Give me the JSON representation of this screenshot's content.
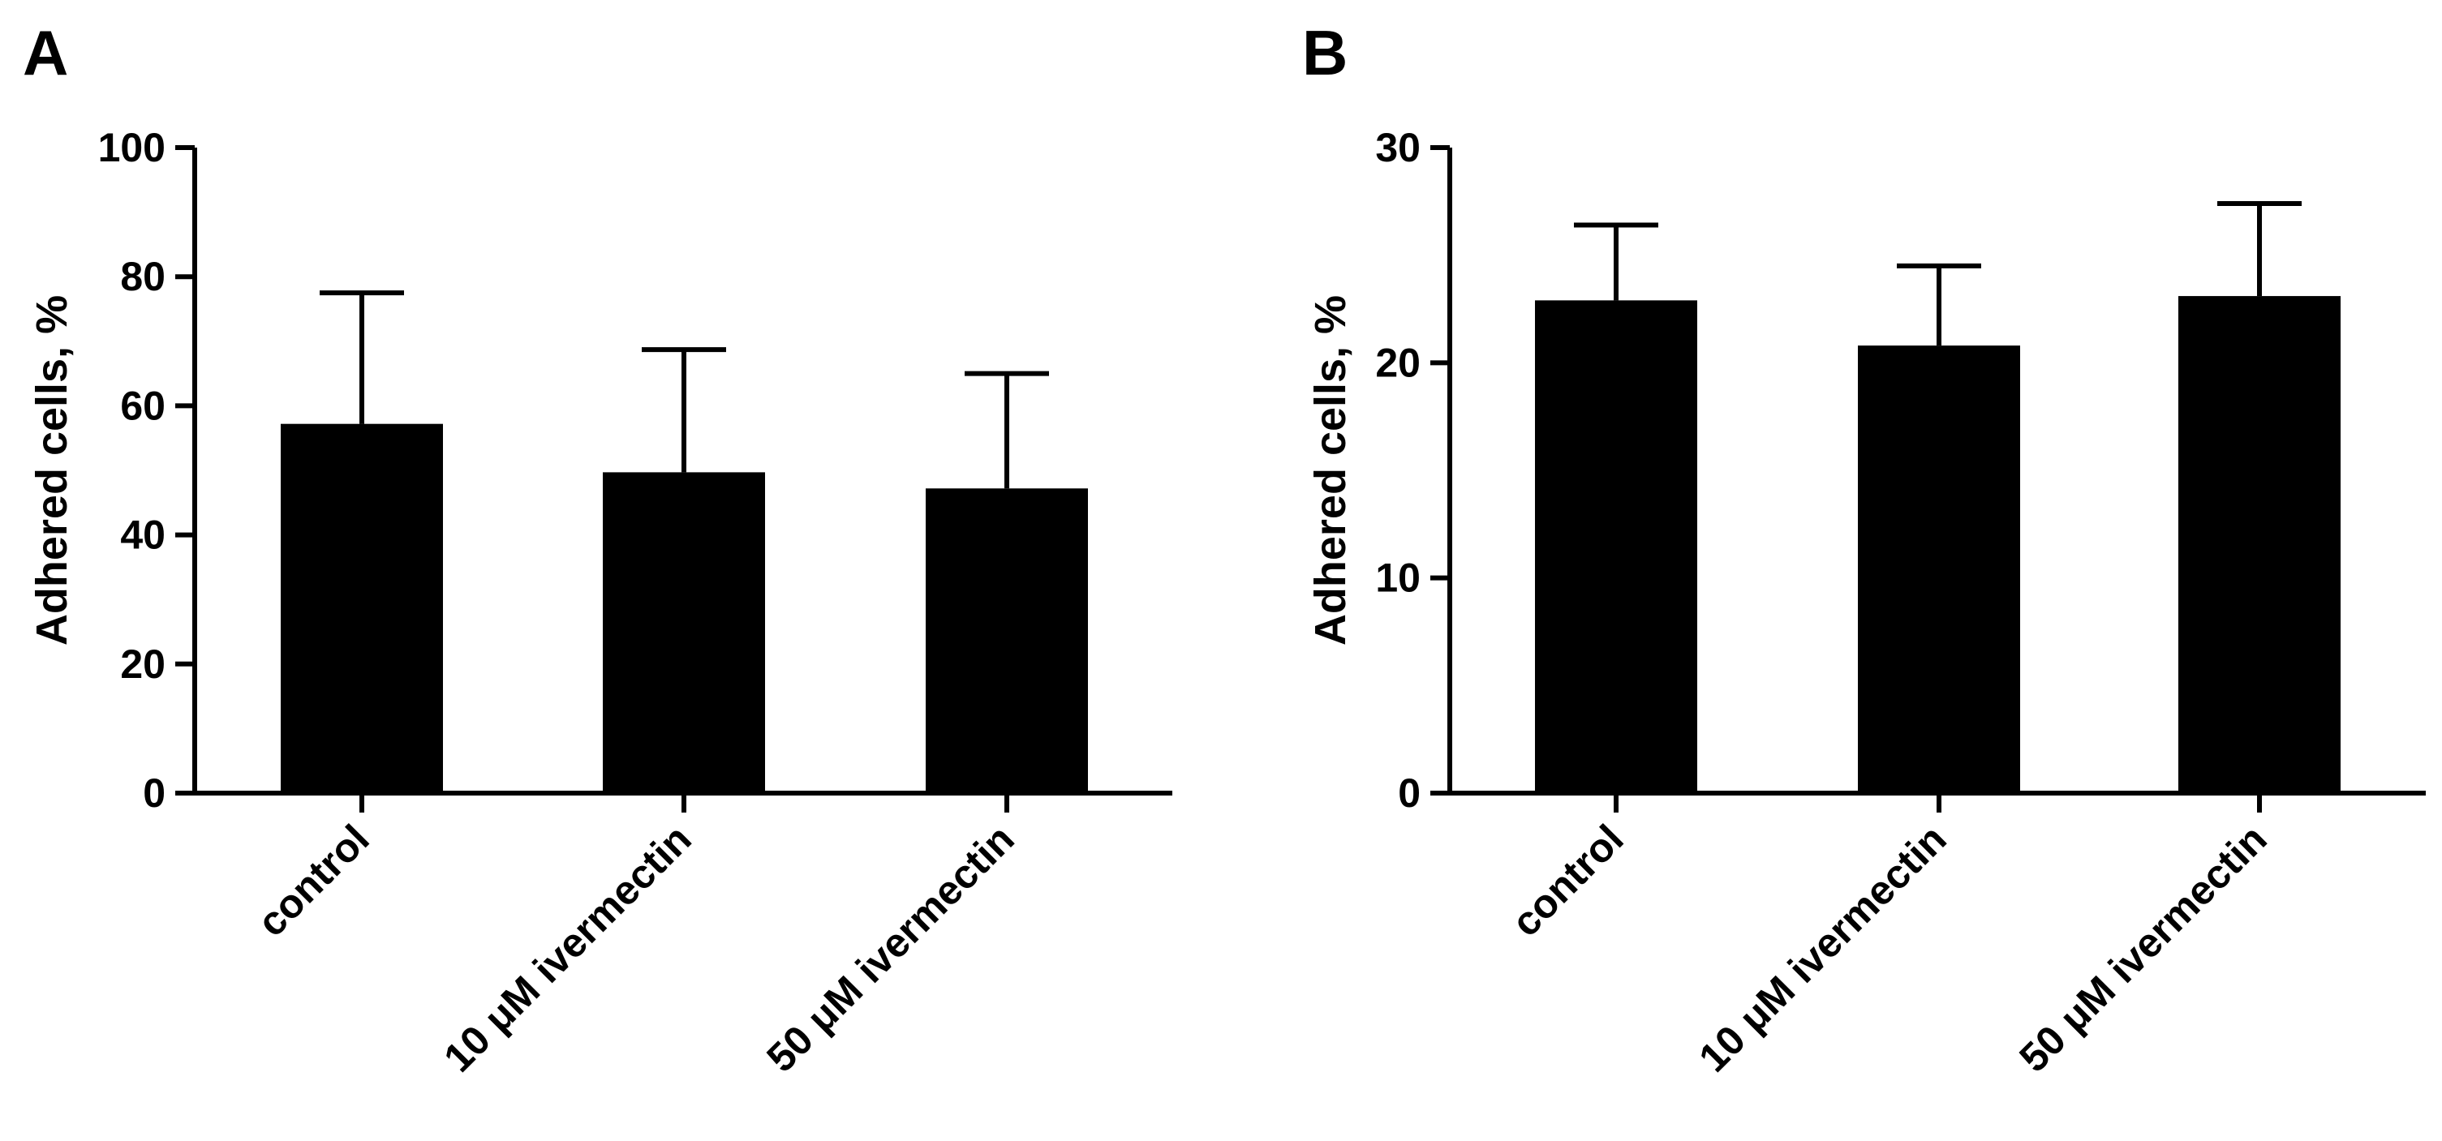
{
  "chart_data": [
    {
      "panel_label": "A",
      "type": "bar",
      "categories": [
        "control",
        "10 μM ivermectin",
        "50 μM ivermectin"
      ],
      "values": [
        57.2,
        49.7,
        47.2
      ],
      "errors": [
        20.3,
        19.0,
        17.8
      ],
      "ylabel": "Adhered cells, %",
      "ylim": [
        0,
        100
      ],
      "yticks": [
        0,
        20,
        40,
        60,
        80,
        100
      ],
      "bar_color": "#000000"
    },
    {
      "panel_label": "B",
      "type": "bar",
      "categories": [
        "control",
        "10 μM ivermectin",
        "50 μM ivermectin"
      ],
      "values": [
        22.9,
        20.8,
        23.1
      ],
      "errors": [
        3.5,
        3.7,
        4.3
      ],
      "ylabel": "Adhered cells, %",
      "ylim": [
        0,
        30
      ],
      "yticks": [
        0,
        10,
        20,
        30
      ],
      "bar_color": "#000000"
    }
  ]
}
